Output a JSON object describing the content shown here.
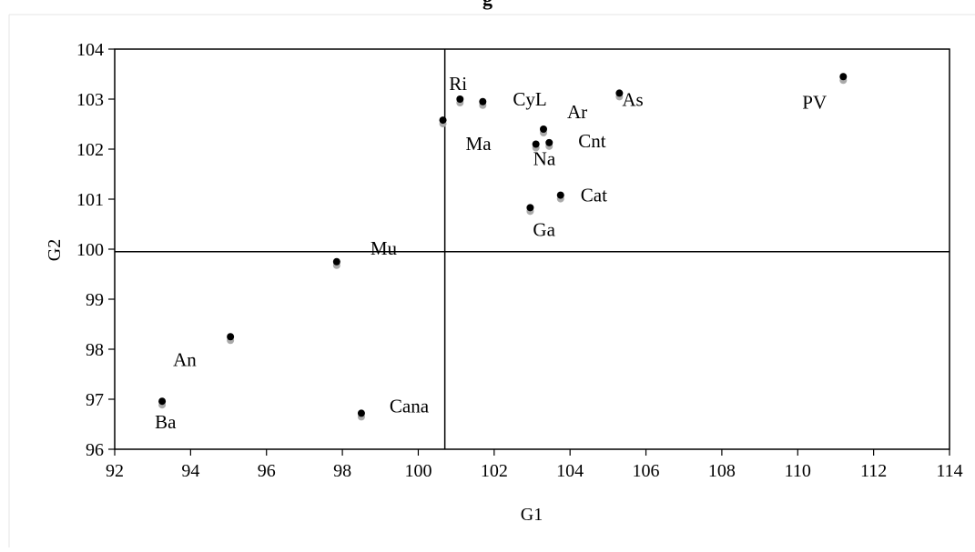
{
  "chart_data": {
    "type": "scatter",
    "title": "g",
    "xlabel": "G1",
    "ylabel": "G2",
    "xlim": [
      92,
      114
    ],
    "ylim": [
      96,
      104
    ],
    "xticks": [
      92,
      94,
      96,
      98,
      100,
      102,
      104,
      106,
      108,
      110,
      112,
      114
    ],
    "yticks": [
      96,
      97,
      98,
      99,
      100,
      101,
      102,
      103,
      104
    ],
    "reference_lines": {
      "x": 100.7,
      "y": 99.95
    },
    "grid": false,
    "legend": "none",
    "marker_color": "#000000",
    "shadow_color": "#aaaaaa",
    "points": [
      {
        "label": "PV",
        "x": 111.2,
        "y": 103.45
      },
      {
        "label": "As",
        "x": 105.3,
        "y": 103.12
      },
      {
        "label": "Ri",
        "x": 101.1,
        "y": 103.0
      },
      {
        "label": "CyL",
        "x": 101.7,
        "y": 102.95
      },
      {
        "label": "Ma",
        "x": 100.65,
        "y": 102.58
      },
      {
        "label": "Ar",
        "x": 103.3,
        "y": 102.4
      },
      {
        "label": "Na",
        "x": 103.1,
        "y": 102.1
      },
      {
        "label": "Cnt",
        "x": 103.45,
        "y": 102.13
      },
      {
        "label": "Cat",
        "x": 103.75,
        "y": 101.08
      },
      {
        "label": "Ga",
        "x": 102.95,
        "y": 100.83
      },
      {
        "label": "Mu",
        "x": 97.85,
        "y": 99.75
      },
      {
        "label": "An",
        "x": 95.05,
        "y": 98.25
      },
      {
        "label": "Ba",
        "x": 93.25,
        "y": 96.96
      },
      {
        "label": "Cana",
        "x": 98.5,
        "y": 96.72
      }
    ]
  }
}
